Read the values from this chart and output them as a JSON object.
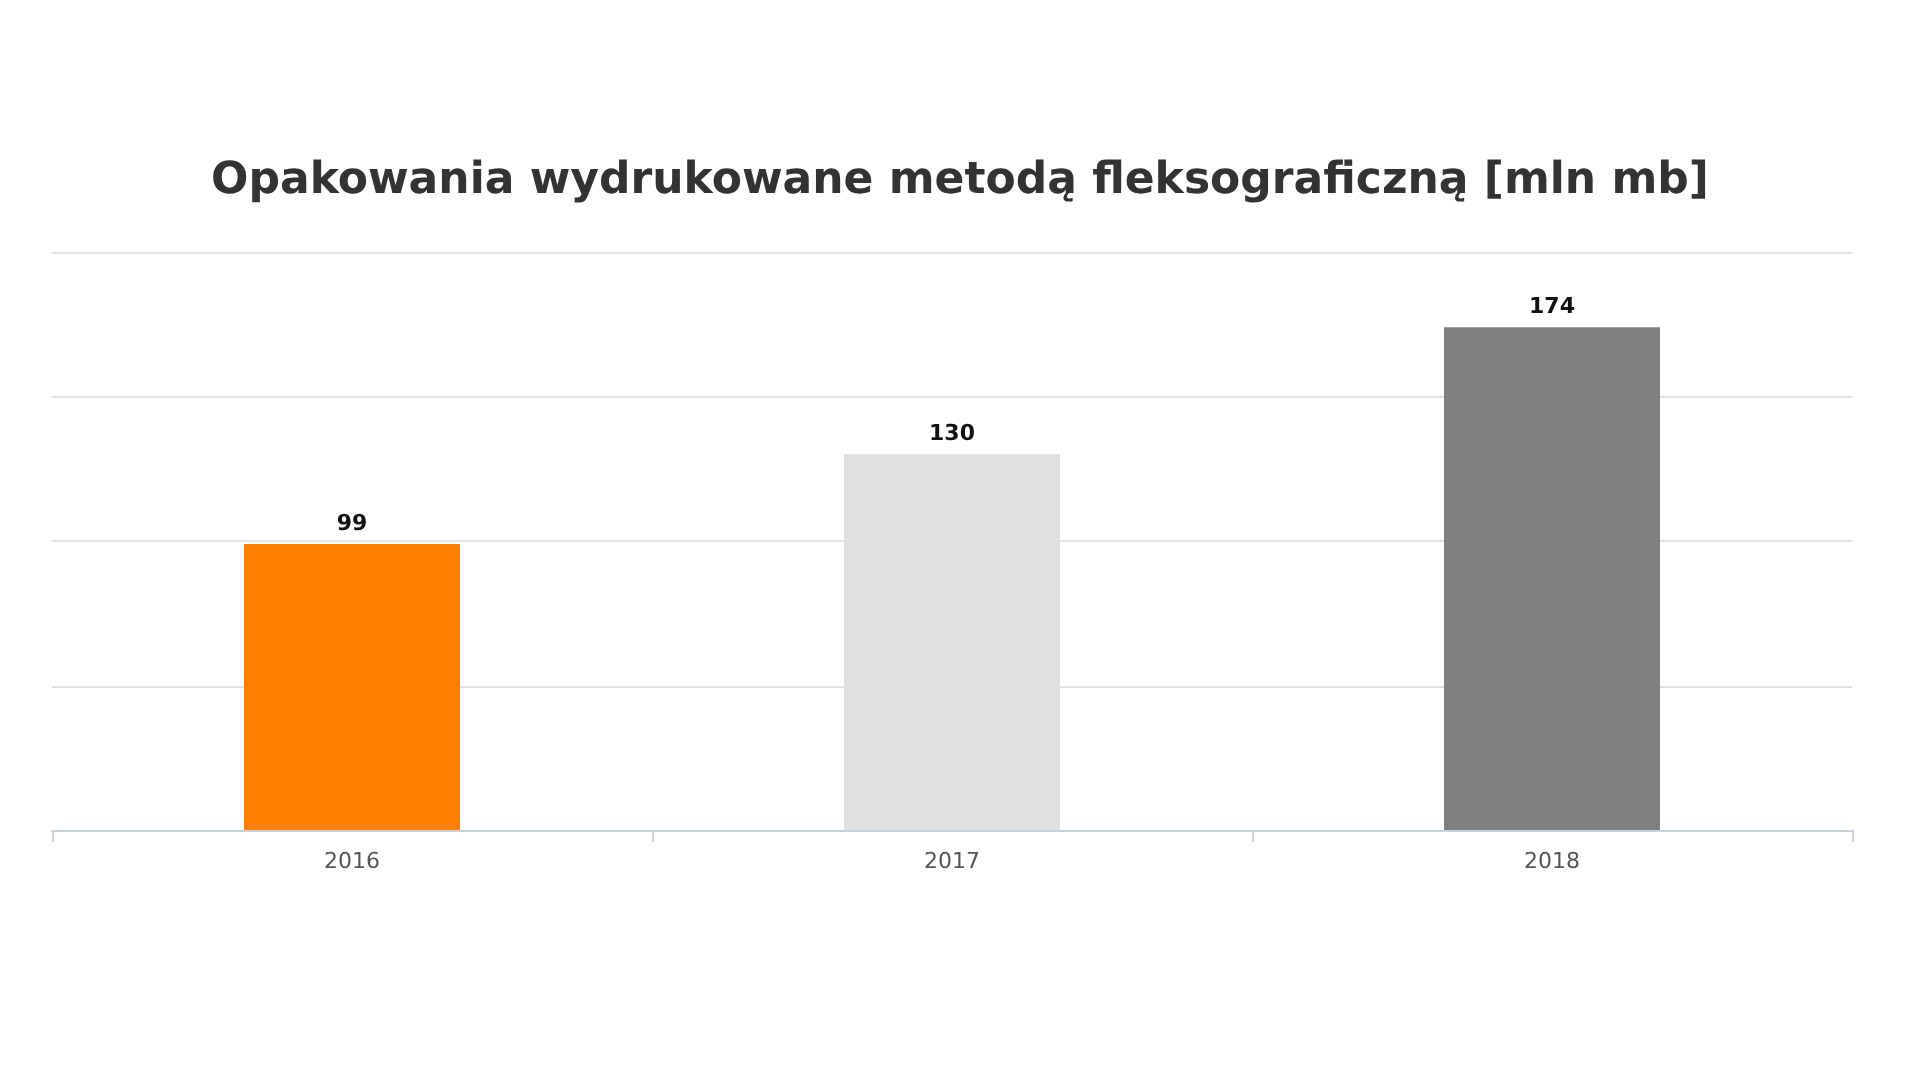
{
  "chart_data": {
    "type": "bar",
    "title": "Opakowania wydrukowane metodą fleksograficzną [mln mb]",
    "categories": [
      "2016",
      "2017",
      "2018"
    ],
    "values": [
      99,
      130,
      174
    ],
    "colors": [
      "#ff7f00",
      "#e0e0e0",
      "#808080"
    ],
    "data_labels": true,
    "ylim": [
      0,
      200
    ],
    "yticks": [
      {
        "value": 0,
        "label": null
      },
      {
        "value": 50,
        "label": null
      },
      {
        "value": 100,
        "label": null
      },
      {
        "value": 150,
        "label": null
      },
      {
        "value": 200,
        "label": null
      }
    ],
    "tick_labels": "x",
    "grid": "y"
  }
}
